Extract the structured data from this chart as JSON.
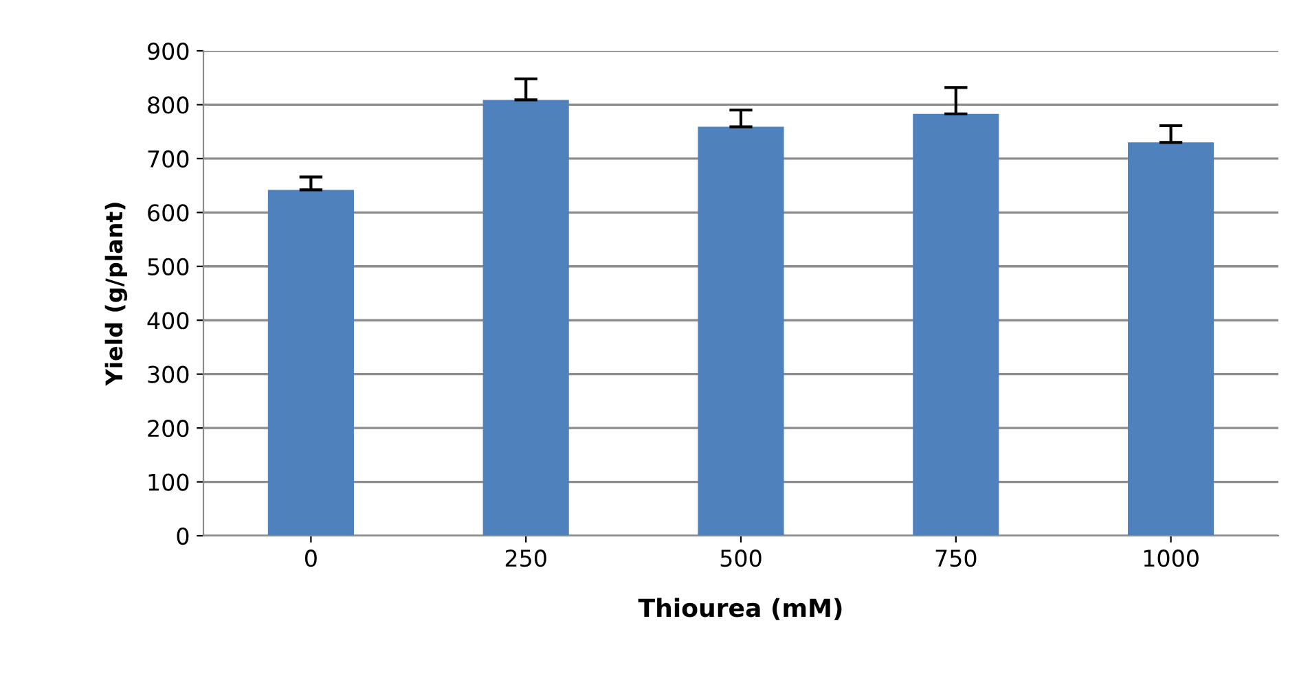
{
  "chart_data": {
    "type": "bar",
    "xlabel": "Thiourea (mM)",
    "ylabel": "Yield (g/plant)",
    "categories": [
      "0",
      "250",
      "500",
      "750",
      "1000"
    ],
    "values": [
      642,
      809,
      759,
      783,
      730
    ],
    "errors": [
      [
        642,
        666
      ],
      [
        809,
        848
      ],
      [
        759,
        790
      ],
      [
        783,
        832
      ],
      [
        730,
        761
      ]
    ],
    "color": "#4f81bd",
    "ylim": [
      0,
      900
    ],
    "yticks": [
      0,
      100,
      200,
      300,
      400,
      500,
      600,
      700,
      800,
      900
    ],
    "grid": "y",
    "legend": false
  }
}
